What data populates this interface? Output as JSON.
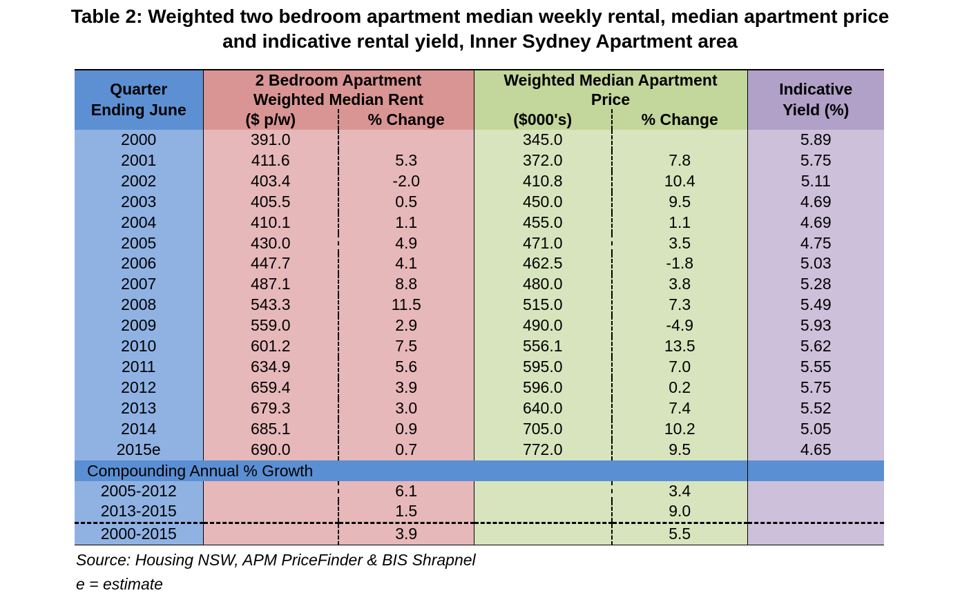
{
  "title_line1": "Table 2: Weighted two bedroom apartment median weekly rental, median apartment price",
  "title_line2": "and indicative rental yield, Inner Sydney Apartment area",
  "headers": {
    "quarter_line1": "Quarter",
    "quarter_line2": "Ending June",
    "rent_line1": "2 Bedroom Apartment",
    "rent_line2": "Weighted Median Rent",
    "rent_col1": "($ p/w)",
    "rent_col2": "% Change",
    "price_line1": "Weighted Median Apartment",
    "price_line2": "Price",
    "price_col1": "($000's)",
    "price_col2": "% Change",
    "yield_line1": "Indicative",
    "yield_line2": "Yield (%)"
  },
  "rows": [
    [
      "2000",
      "391.0",
      "",
      "345.0",
      "",
      "5.89"
    ],
    [
      "2001",
      "411.6",
      "5.3",
      "372.0",
      "7.8",
      "5.75"
    ],
    [
      "2002",
      "403.4",
      "-2.0",
      "410.8",
      "10.4",
      "5.11"
    ],
    [
      "2003",
      "405.5",
      "0.5",
      "450.0",
      "9.5",
      "4.69"
    ],
    [
      "2004",
      "410.1",
      "1.1",
      "455.0",
      "1.1",
      "4.69"
    ],
    [
      "2005",
      "430.0",
      "4.9",
      "471.0",
      "3.5",
      "4.75"
    ],
    [
      "2006",
      "447.7",
      "4.1",
      "462.5",
      "-1.8",
      "5.03"
    ],
    [
      "2007",
      "487.1",
      "8.8",
      "480.0",
      "3.8",
      "5.28"
    ],
    [
      "2008",
      "543.3",
      "11.5",
      "515.0",
      "7.3",
      "5.49"
    ],
    [
      "2009",
      "559.0",
      "2.9",
      "490.0",
      "-4.9",
      "5.93"
    ],
    [
      "2010",
      "601.2",
      "7.5",
      "556.1",
      "13.5",
      "5.62"
    ],
    [
      "2011",
      "634.9",
      "5.6",
      "595.0",
      "7.0",
      "5.55"
    ],
    [
      "2012",
      "659.4",
      "3.9",
      "596.0",
      "0.2",
      "5.75"
    ],
    [
      "2013",
      "679.3",
      "3.0",
      "640.0",
      "7.4",
      "5.52"
    ],
    [
      "2014",
      "685.1",
      "0.9",
      "705.0",
      "10.2",
      "5.05"
    ],
    [
      "2015e",
      "690.0",
      "0.7",
      "772.0",
      "9.5",
      "4.65"
    ]
  ],
  "compounding_label": "Compounding Annual % Growth",
  "growth_rows": [
    [
      "2005-2012",
      "6.1",
      "3.4"
    ],
    [
      "2013-2015",
      "1.5",
      "9.0"
    ],
    [
      "2000-2015",
      "3.9",
      "5.5"
    ]
  ],
  "source": "Source: Housing NSW, APM PriceFinder & BIS Shrapnel",
  "estimate_note": "e = estimate"
}
